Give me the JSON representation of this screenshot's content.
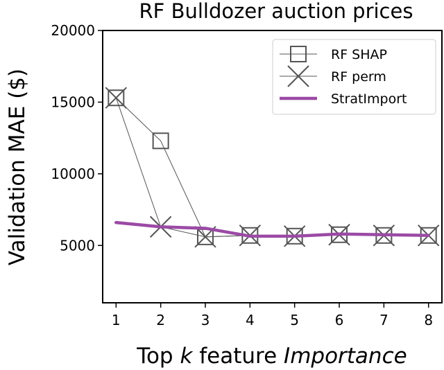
{
  "chart_data": {
    "type": "line",
    "title": "RF Bulldozer auction prices",
    "ylabel": "Validation MAE ($)",
    "xlabel_parts": [
      {
        "text": "Top ",
        "italic": false
      },
      {
        "text": "k",
        "italic": true
      },
      {
        "text": " feature ",
        "italic": false
      },
      {
        "text": "Importance",
        "italic": true
      }
    ],
    "x": [
      1,
      2,
      3,
      4,
      5,
      6,
      7,
      8
    ],
    "xticks": [
      "1",
      "2",
      "3",
      "4",
      "5",
      "6",
      "7",
      "8"
    ],
    "xlim": [
      0.7,
      8.3
    ],
    "yticks": [
      {
        "value": 5000,
        "label": "5000"
      },
      {
        "value": 10000,
        "label": "10000"
      },
      {
        "value": 15000,
        "label": "15000"
      },
      {
        "value": 20000,
        "label": "20000"
      }
    ],
    "ylim": [
      1000,
      20000
    ],
    "grid": false,
    "legend_position": "top-right",
    "series": [
      {
        "name": "RF SHAP",
        "marker": "square",
        "color": "#555555",
        "values": [
          15300,
          12300,
          5600,
          5700,
          5650,
          5750,
          5700,
          5700
        ]
      },
      {
        "name": "RF perm",
        "marker": "x",
        "color": "#555555",
        "values": [
          15300,
          6300,
          5600,
          5700,
          5650,
          5750,
          5700,
          5700
        ]
      },
      {
        "name": "StratImport",
        "marker": "none",
        "color": "#9b4aa5",
        "values": [
          6600,
          6300,
          6200,
          5650,
          5650,
          5800,
          5750,
          5700
        ]
      }
    ]
  }
}
